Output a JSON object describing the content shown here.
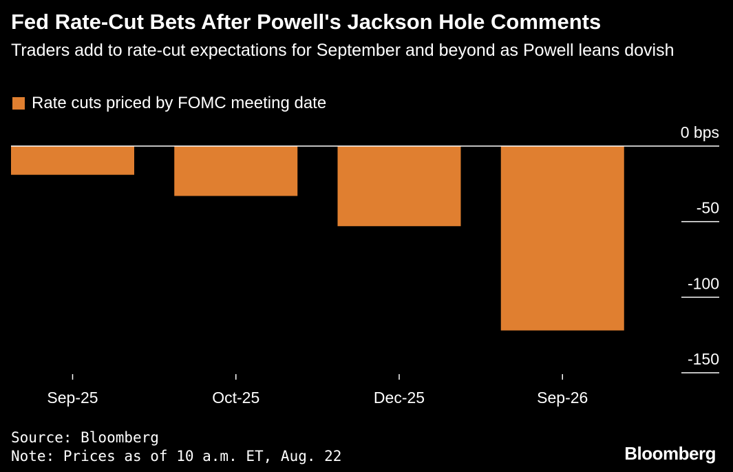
{
  "colors": {
    "background": "#000000",
    "bar": "#E07F30",
    "text": "#ffffff",
    "axis": "#ffffff"
  },
  "header": {
    "title": "Fed Rate-Cut Bets After Powell's Jackson Hole Comments",
    "subtitle": "Traders add to rate-cut expectations for September and beyond as Powell leans dovish"
  },
  "legend": {
    "label": "Rate cuts priced by FOMC meeting date"
  },
  "footer": {
    "source": "Source: Bloomberg",
    "note": "Note: Prices as of 10 a.m. ET, Aug. 22",
    "logo": "Bloomberg"
  },
  "chart_data": {
    "type": "bar",
    "categories": [
      "Sep-25",
      "Oct-25",
      "Dec-25",
      "Sep-26"
    ],
    "values": [
      -19,
      -33,
      -53,
      -122
    ],
    "ylim": [
      -150,
      0
    ],
    "yticks": [
      0,
      -50,
      -100,
      -150
    ],
    "ytick_labels": [
      "0 bps",
      "-50",
      "-100",
      "-150"
    ],
    "legend_position": "top-left",
    "grid": false
  }
}
